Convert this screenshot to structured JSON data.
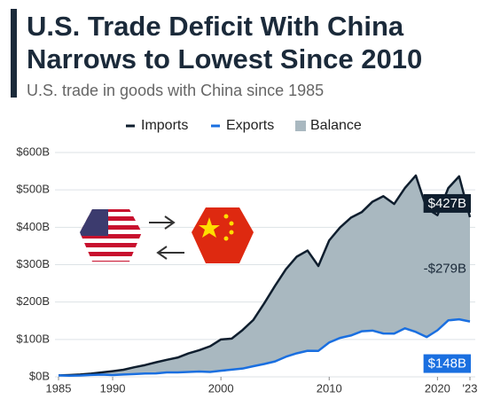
{
  "chart_data": {
    "type": "line",
    "title": [
      "U.S. Trade Deficit With China",
      "Narrows to Lowest Since 2010"
    ],
    "subtitle": "U.S. trade in goods with China since 1985",
    "x": [
      1985,
      1986,
      1987,
      1988,
      1989,
      1990,
      1991,
      1992,
      1993,
      1994,
      1995,
      1996,
      1997,
      1998,
      1999,
      2000,
      2001,
      2002,
      2003,
      2004,
      2005,
      2006,
      2007,
      2008,
      2009,
      2010,
      2011,
      2012,
      2013,
      2014,
      2015,
      2016,
      2017,
      2018,
      2019,
      2020,
      2021,
      2022,
      2023
    ],
    "series": [
      {
        "name": "Imports",
        "color": "#0f1e2e",
        "values": [
          3.9,
          4.8,
          6.3,
          8.5,
          12,
          15.2,
          19,
          25.7,
          31.5,
          38.8,
          45.5,
          51.5,
          62.6,
          71.2,
          81.8,
          100,
          102.3,
          125.2,
          152.4,
          196.7,
          243.5,
          287.8,
          321.4,
          337.8,
          296.4,
          364.9,
          399.4,
          425.6,
          440.4,
          468.5,
          483.2,
          462.4,
          505.2,
          538.5,
          450.4,
          432.5,
          504.9,
          536.3,
          427
        ]
      },
      {
        "name": "Exports",
        "color": "#1a6fe0",
        "values": [
          3.9,
          3.1,
          3.5,
          5,
          5.8,
          4.8,
          6.3,
          7.4,
          8.8,
          9.3,
          11.8,
          12,
          12.9,
          14.2,
          13.1,
          16.2,
          19.2,
          22.1,
          28.4,
          34.4,
          41.2,
          53.7,
          62.9,
          69.7,
          69.5,
          91.9,
          104.1,
          110.5,
          121.7,
          123.7,
          115.9,
          115.6,
          129.8,
          120.1,
          106.4,
          124.5,
          151.1,
          153.8,
          148
        ]
      },
      {
        "name": "Balance",
        "color": "#a9b8c0"
      }
    ],
    "annotations": [
      {
        "label": "$427B",
        "value": 427,
        "x": 2023
      },
      {
        "label": "-$279B",
        "value": -279,
        "x": 2023
      },
      {
        "label": "$148B",
        "value": 148,
        "x": 2023
      }
    ],
    "xlim": [
      1985,
      2023
    ],
    "xticks": [
      1985,
      1990,
      2000,
      2010,
      2020,
      {
        "value": 2023,
        "label": "'23"
      }
    ],
    "ylim": [
      0,
      600
    ],
    "yticks": [
      {
        "value": 0,
        "label": "$0B"
      },
      {
        "value": 100,
        "label": "$100B"
      },
      {
        "value": 200,
        "label": "$200B"
      },
      {
        "value": 300,
        "label": "$300B"
      },
      {
        "value": 400,
        "label": "$400B"
      },
      {
        "value": 500,
        "label": "$500B"
      },
      {
        "value": 600,
        "label": "$600B"
      }
    ],
    "grid": true
  }
}
